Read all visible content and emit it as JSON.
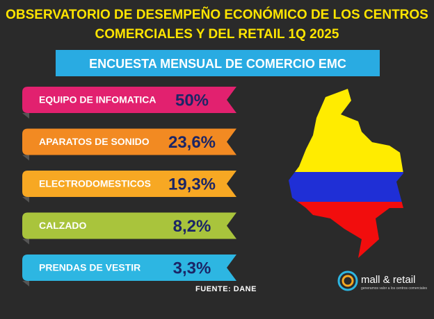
{
  "header": {
    "title_lines": [
      "OBSERVATORIO DE DESEMPEÑO  ECONÓMICO DE LOS CENTROS",
      "COMERCIALES Y DEL RETAIL 1Q 2025"
    ],
    "banner": "ENCUESTA MENSUAL DE COMERCIO EMC"
  },
  "items": [
    {
      "label": "EQUIPO DE INFOMATICA",
      "value": "50%",
      "color": "#e2216f"
    },
    {
      "label": "APARATOS DE SONIDO",
      "value": "23,6%",
      "color": "#f28a22"
    },
    {
      "label": "ELECTRODOMESTICOS",
      "value": "19,3%",
      "color": "#f7a823"
    },
    {
      "label": "CALZADO",
      "value": "8,2%",
      "color": "#a9c43c"
    },
    {
      "label": "PRENDAS DE VESTIR",
      "value": "3,3%",
      "color": "#2db6e2"
    }
  ],
  "source": "FUENTE: DANE",
  "logo": {
    "name": "mall & retail",
    "tagline": "generamos valor a los centros comerciales"
  }
}
